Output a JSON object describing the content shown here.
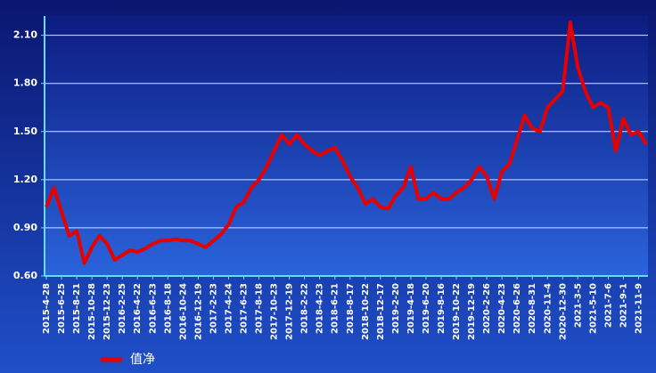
{
  "chart_data": {
    "type": "line",
    "categories": [
      "2015-4-28",
      null,
      "2015-6-25",
      null,
      "2015-8-21",
      null,
      "2015-10-28",
      null,
      "2015-12-23",
      null,
      "2016-2-25",
      null,
      "2016-4-22",
      null,
      "2016-6-23",
      null,
      "2016-8-18",
      null,
      "2016-10-24",
      null,
      "2016-12-19",
      null,
      "2017-2-23",
      null,
      "2017-4-24",
      null,
      "2017-6-23",
      null,
      "2017-8-18",
      null,
      "2017-10-23",
      null,
      "2017-12-19",
      null,
      "2018-2-22",
      null,
      "2018-4-23",
      null,
      "2018-6-21",
      null,
      "2018-8-17",
      null,
      "2018-10-22",
      null,
      "2018-12-17",
      null,
      "2019-2-20",
      null,
      "2019-4-18",
      null,
      "2019-6-20",
      null,
      "2019-8-16",
      null,
      "2019-10-22",
      null,
      "2019-12-19",
      null,
      "2020-2-26",
      null,
      "2020-4-23",
      null,
      "2020-6-26",
      null,
      "2020-8-31",
      null,
      "2020-11-4",
      null,
      "2020-12-30",
      null,
      "2021-3-5",
      null,
      "2021-5-10",
      null,
      "2021-7-6",
      null,
      "2021-9-1",
      null,
      "2021-11-9",
      null
    ],
    "series": [
      {
        "name": "值净",
        "color": "#e60000",
        "values": [
          1.03,
          1.15,
          1.0,
          0.85,
          0.88,
          0.68,
          0.78,
          0.85,
          0.8,
          0.7,
          0.73,
          0.76,
          0.75,
          0.77,
          0.8,
          0.82,
          0.82,
          0.83,
          0.82,
          0.82,
          0.8,
          0.78,
          0.82,
          0.86,
          0.92,
          1.03,
          1.06,
          1.15,
          1.2,
          1.28,
          1.38,
          1.48,
          1.42,
          1.48,
          1.42,
          1.38,
          1.35,
          1.38,
          1.4,
          1.32,
          1.22,
          1.15,
          1.05,
          1.08,
          1.03,
          1.02,
          1.1,
          1.15,
          1.28,
          1.08,
          1.08,
          1.12,
          1.08,
          1.08,
          1.12,
          1.15,
          1.2,
          1.28,
          1.22,
          1.08,
          1.25,
          1.3,
          1.45,
          1.6,
          1.52,
          1.5,
          1.65,
          1.7,
          1.75,
          2.18,
          1.9,
          1.75,
          1.65,
          1.68,
          1.65,
          1.38,
          1.58,
          1.48,
          1.5,
          1.42
        ]
      }
    ],
    "ylim": [
      0.6,
      2.22
    ],
    "yticks": [
      {
        "value": 0.6,
        "label": "0.60"
      },
      {
        "value": 0.9,
        "label": "0.90"
      },
      {
        "value": 1.2,
        "label": "1.20"
      },
      {
        "value": 1.5,
        "label": "1.50"
      },
      {
        "value": 1.8,
        "label": "1.80"
      },
      {
        "value": 2.1,
        "label": "2.10"
      }
    ],
    "grid": true,
    "legend": "bottom-left"
  }
}
